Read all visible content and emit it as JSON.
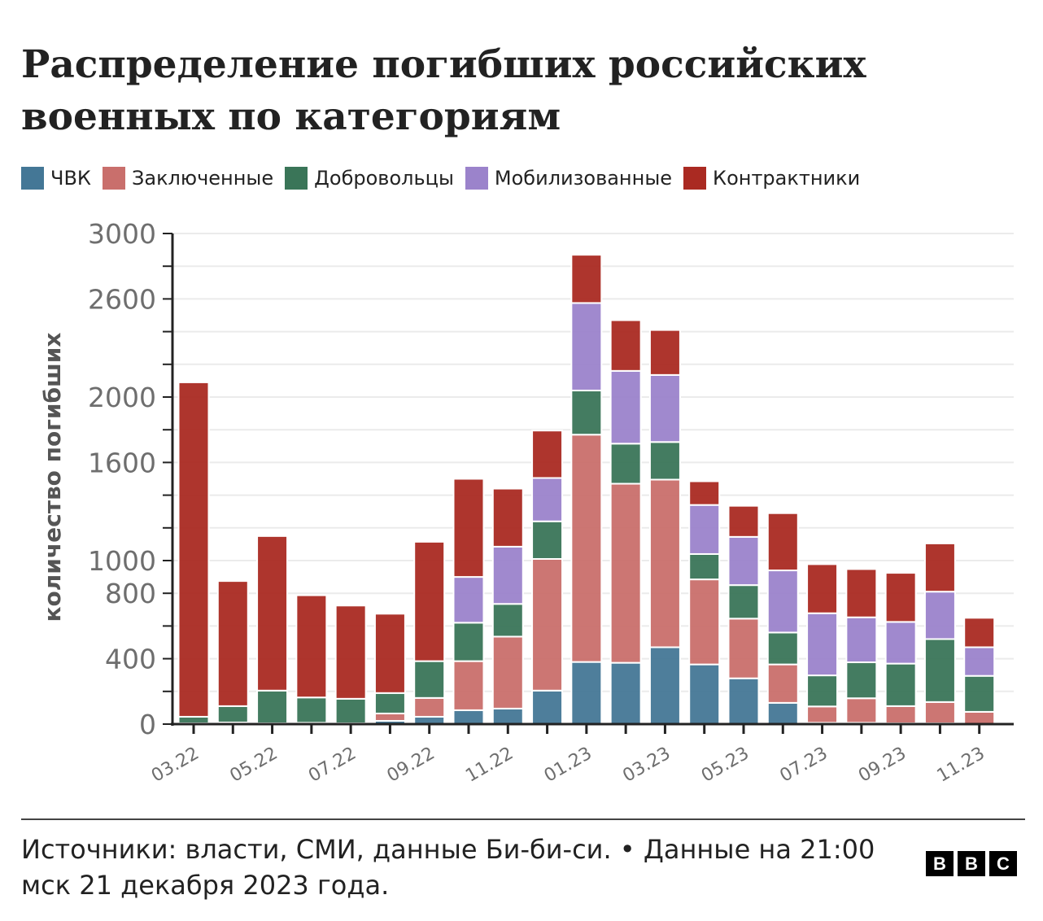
{
  "title": "Распределение погибших российских военных по категориям",
  "legend": [
    {
      "label": "ЧВК",
      "color": "#447796"
    },
    {
      "label": "Заключенные",
      "color": "#c96f6c"
    },
    {
      "label": "Добровольцы",
      "color": "#3a7558"
    },
    {
      "label": "Мобилизованные",
      "color": "#9b83cb"
    },
    {
      "label": "Контрактники",
      "color": "#aa2a22"
    }
  ],
  "footer": "Источники: власти, СМИ, данные Би-би-си. • Данные на 21:00 мск 21 декабря 2023 года.",
  "logo": [
    "B",
    "B",
    "C"
  ],
  "chart_data": {
    "type": "bar",
    "stacked": true,
    "title": "Распределение погибших российских военных по категориям",
    "ylabel": "количество погибших",
    "xlabel": "",
    "ylim": [
      0,
      3000
    ],
    "yticks": [
      0,
      400,
      800,
      1000,
      1600,
      2000,
      2600,
      3000
    ],
    "grid": true,
    "legend_position": "top",
    "categories": [
      "03.22",
      "04.22",
      "05.22",
      "06.22",
      "07.22",
      "08.22",
      "09.22",
      "10.22",
      "11.22",
      "12.22",
      "01.23",
      "02.23",
      "03.23",
      "04.23",
      "05.23",
      "06.23",
      "07.23",
      "08.23",
      "09.23",
      "10.23",
      "11.23"
    ],
    "xtick_labels": [
      "03.22",
      "05.22",
      "07.22",
      "09.22",
      "11.22",
      "01.23",
      "03.23",
      "05.23",
      "07.23",
      "09.23",
      "11.23"
    ],
    "series": [
      {
        "name": "ЧВК",
        "color": "#447796",
        "values": [
          5,
          10,
          5,
          8,
          5,
          20,
          45,
          85,
          95,
          205,
          380,
          375,
          470,
          365,
          280,
          130,
          8,
          8,
          5,
          5,
          0
        ]
      },
      {
        "name": "Заключенные",
        "color": "#c96f6c",
        "values": [
          0,
          0,
          0,
          0,
          0,
          45,
          115,
          300,
          440,
          805,
          1390,
          1095,
          1025,
          520,
          365,
          235,
          100,
          150,
          105,
          130,
          75
        ]
      },
      {
        "name": "Добровольцы",
        "color": "#3a7558",
        "values": [
          40,
          100,
          200,
          155,
          150,
          125,
          225,
          235,
          200,
          230,
          270,
          245,
          230,
          155,
          205,
          195,
          190,
          220,
          260,
          385,
          220
        ]
      },
      {
        "name": "Мобилизованные",
        "color": "#9b83cb",
        "values": [
          0,
          0,
          0,
          0,
          0,
          0,
          0,
          280,
          350,
          265,
          535,
          445,
          410,
          300,
          295,
          380,
          380,
          275,
          255,
          290,
          175
        ]
      },
      {
        "name": "Контрактники",
        "color": "#aa2a22",
        "values": [
          2045,
          765,
          945,
          625,
          570,
          485,
          730,
          600,
          355,
          290,
          295,
          310,
          275,
          145,
          190,
          350,
          300,
          295,
          300,
          295,
          180
        ]
      }
    ]
  }
}
